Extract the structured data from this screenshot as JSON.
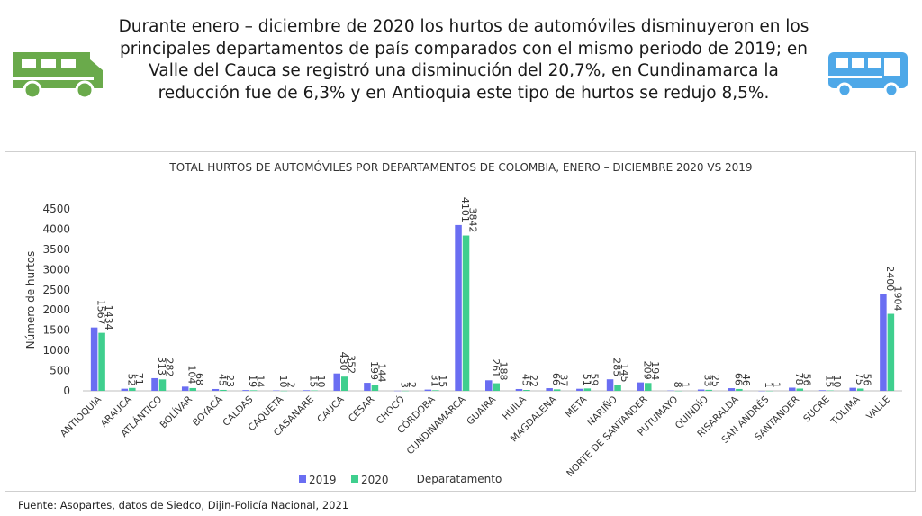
{
  "intro_text": "Durante enero – diciembre de 2020 los hurtos de automóviles disminuyeron en los principales departamentos de país comparados con el mismo periodo de 2019; en Valle del Cauca se registró una disminución del 20,7%, en Cundinamarca la reducción fue de 6,3% y en Antioquia este tipo de hurtos se redujo 8,5%.",
  "icons": {
    "left": "rv-camper-icon",
    "right": "bus-icon"
  },
  "colors": {
    "series_2019": "#6a6ef2",
    "series_2020": "#3fcf8e",
    "rv": "#6aaa4b",
    "bus": "#4ea8e8"
  },
  "source_text": "Fuente: Asopartes, datos de Siedco, Dijin-Policía Nacional, 2021",
  "chart_data": {
    "type": "bar",
    "title": "TOTAL HURTOS DE AUTOMÓVILES POR DEPARTAMENTOS DE COLOMBIA, ENERO – DICIEMBRE 2020 VS 2019",
    "xlabel": "Deparatamento",
    "ylabel": "Número de hurtos",
    "ylim": [
      0,
      4500
    ],
    "yticks": [
      0,
      500,
      1000,
      1500,
      2000,
      2500,
      3000,
      3500,
      4000,
      4500
    ],
    "legend_position": "bottom-left",
    "grid": false,
    "categories": [
      "ANTIOQUIA",
      "ARAUCA",
      "ATLÁNTICO",
      "BOLÍVAR",
      "BOYACÁ",
      "CALDAS",
      "CAQUETÁ",
      "CASANARE",
      "CAUCA",
      "CESAR",
      "CHOCÓ",
      "CÓRDOBA",
      "CUNDINAMARCA",
      "GUAIRA",
      "HUILA",
      "MAGDALENA",
      "META",
      "NARIÑO",
      "NORTE DE SANTANDER",
      "PUTUMAYO",
      "QUINDÍO",
      "RISARALDA",
      "SAN ANDRÉS",
      "SANTANDER",
      "SUCRE",
      "TOLIMA",
      "VALLE"
    ],
    "series": [
      {
        "name": "2019",
        "values": [
          1567,
          52,
          313,
          104,
          45,
          19,
          10,
          15,
          430,
          199,
          3,
          31,
          4101,
          261,
          45,
          66,
          51,
          285,
          209,
          8,
          33,
          66,
          1,
          78,
          15,
          75,
          2400
        ]
      },
      {
        "name": "2020",
        "values": [
          1434,
          71,
          282,
          68,
          23,
          14,
          2,
          10,
          352,
          144,
          2,
          15,
          3842,
          188,
          22,
          37,
          59,
          145,
          194,
          1,
          25,
          46,
          1,
          56,
          10,
          56,
          1904
        ]
      }
    ]
  }
}
